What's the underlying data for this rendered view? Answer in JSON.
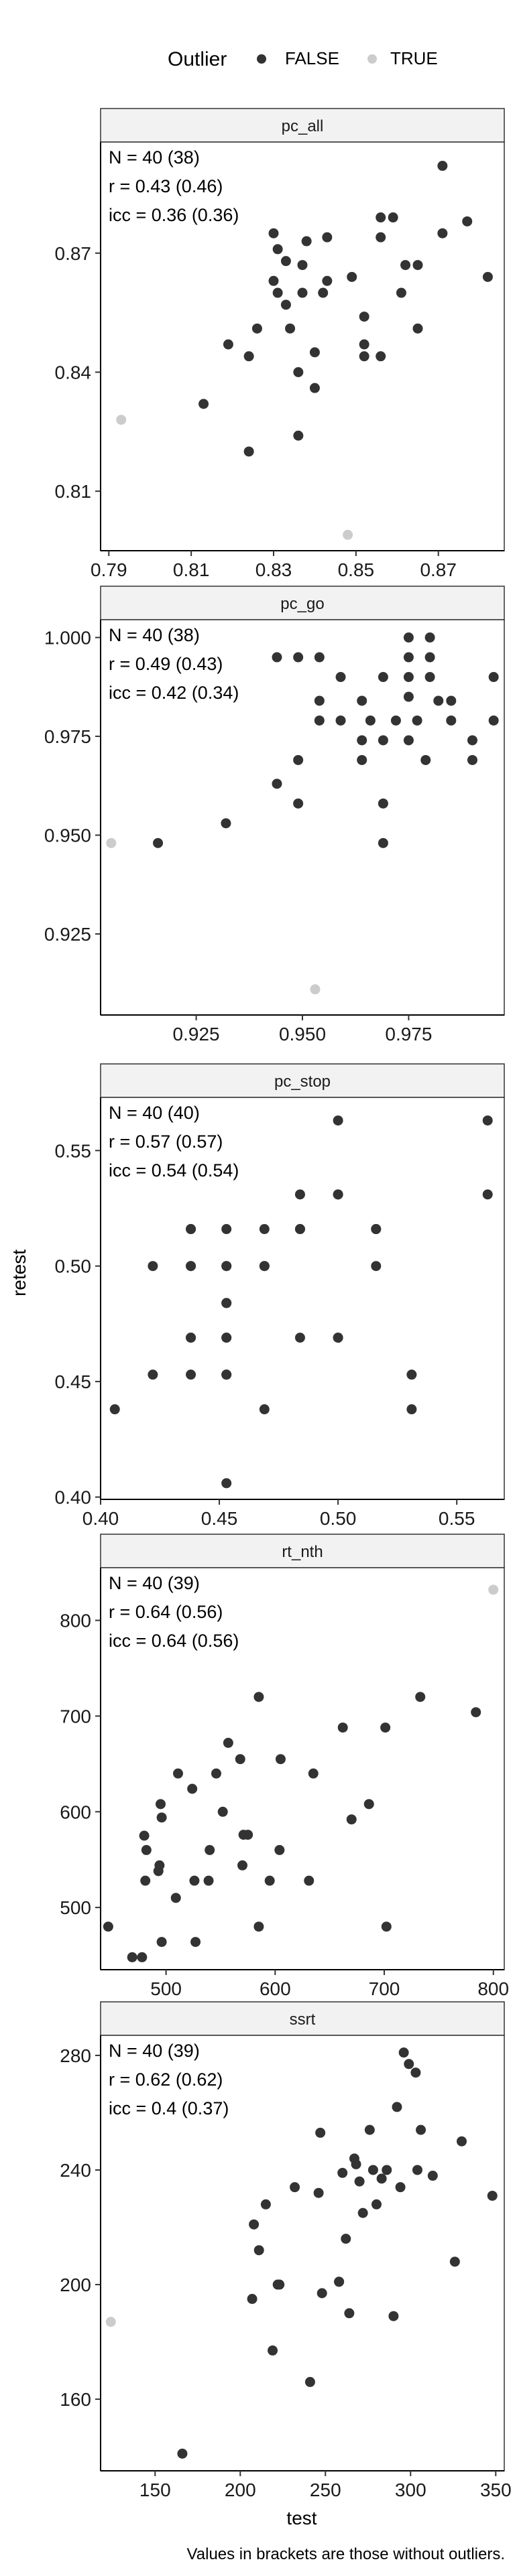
{
  "legend": {
    "title": "Outlier",
    "items": [
      {
        "label": "FALSE",
        "color": "#333333"
      },
      {
        "label": "TRUE",
        "color": "#cccccc"
      }
    ]
  },
  "y_axis_title": "retest",
  "x_axis_title": "test",
  "caption": "Values in brackets are those without outliers.",
  "chart_data": [
    {
      "type": "scatter",
      "title": "pc_all",
      "stats": [
        "N = 40 (38)",
        "r = 0.43 (0.46)",
        "icc = 0.36 (0.36)"
      ],
      "xlim": [
        0.788,
        0.886
      ],
      "ylim": [
        0.795,
        0.898
      ],
      "xticks": [
        0.79,
        0.81,
        0.83,
        0.85,
        0.87
      ],
      "yticks": [
        0.81,
        0.84,
        0.87
      ],
      "xdec": 2,
      "ydec": 2,
      "points": [
        [
          0.882,
          0.864
        ],
        [
          0.877,
          0.878
        ],
        [
          0.871,
          0.875
        ],
        [
          0.871,
          0.892
        ],
        [
          0.865,
          0.851
        ],
        [
          0.865,
          0.867
        ],
        [
          0.862,
          0.867
        ],
        [
          0.861,
          0.86
        ],
        [
          0.859,
          0.879
        ],
        [
          0.856,
          0.879
        ],
        [
          0.856,
          0.874
        ],
        [
          0.856,
          0.844
        ],
        [
          0.852,
          0.844
        ],
        [
          0.852,
          0.847
        ],
        [
          0.852,
          0.854
        ],
        [
          0.849,
          0.864
        ],
        [
          0.843,
          0.874
        ],
        [
          0.843,
          0.863
        ],
        [
          0.842,
          0.86
        ],
        [
          0.84,
          0.836
        ],
        [
          0.84,
          0.845
        ],
        [
          0.837,
          0.86
        ],
        [
          0.837,
          0.867
        ],
        [
          0.836,
          0.824
        ],
        [
          0.836,
          0.84
        ],
        [
          0.834,
          0.851
        ],
        [
          0.833,
          0.868
        ],
        [
          0.833,
          0.857
        ],
        [
          0.831,
          0.86
        ],
        [
          0.831,
          0.871
        ],
        [
          0.83,
          0.875
        ],
        [
          0.826,
          0.851
        ],
        [
          0.824,
          0.82
        ],
        [
          0.824,
          0.844
        ],
        [
          0.819,
          0.847
        ],
        [
          0.813,
          0.832
        ],
        [
          0.83,
          0.863
        ],
        [
          0.838,
          0.873
        ]
      ],
      "outliers": [
        [
          0.793,
          0.828
        ],
        [
          0.848,
          0.799
        ]
      ]
    },
    {
      "type": "scatter",
      "title": "pc_go",
      "stats": [
        "N = 40 (38)",
        "r = 0.49 (0.43)",
        "icc = 0.42 (0.34)"
      ],
      "xlim": [
        0.9025,
        0.9975
      ],
      "ylim": [
        0.9045,
        1.0045
      ],
      "xticks": [
        0.925,
        0.95,
        0.975
      ],
      "yticks": [
        0.925,
        0.95,
        0.975,
        1.0
      ],
      "xdec": 3,
      "ydec": 3,
      "points": [
        [
          0.995,
          0.99
        ],
        [
          0.995,
          0.979
        ],
        [
          0.99,
          0.974
        ],
        [
          0.99,
          0.969
        ],
        [
          0.985,
          0.979
        ],
        [
          0.985,
          0.984
        ],
        [
          0.982,
          0.984
        ],
        [
          0.98,
          1.0
        ],
        [
          0.98,
          0.99
        ],
        [
          0.979,
          0.969
        ],
        [
          0.977,
          0.979
        ],
        [
          0.975,
          0.974
        ],
        [
          0.975,
          0.985
        ],
        [
          0.975,
          0.99
        ],
        [
          0.975,
          0.995
        ],
        [
          0.975,
          1.0
        ],
        [
          0.972,
          0.979
        ],
        [
          0.969,
          0.974
        ],
        [
          0.969,
          0.958
        ],
        [
          0.969,
          0.948
        ],
        [
          0.966,
          0.979
        ],
        [
          0.964,
          0.984
        ],
        [
          0.964,
          0.969
        ],
        [
          0.959,
          0.99
        ],
        [
          0.959,
          0.979
        ],
        [
          0.954,
          0.984
        ],
        [
          0.954,
          0.995
        ],
        [
          0.949,
          0.995
        ],
        [
          0.949,
          0.969
        ],
        [
          0.949,
          0.958
        ],
        [
          0.944,
          0.963
        ],
        [
          0.932,
          0.953
        ],
        [
          0.916,
          0.948
        ],
        [
          0.964,
          0.974
        ],
        [
          0.954,
          0.979
        ],
        [
          0.944,
          0.995
        ],
        [
          0.969,
          0.99
        ],
        [
          0.98,
          0.995
        ]
      ],
      "outliers": [
        [
          0.905,
          0.948
        ],
        [
          0.953,
          0.911
        ]
      ]
    },
    {
      "type": "scatter",
      "title": "pc_stop",
      "stats": [
        "N = 40 (40)",
        "r = 0.57 (0.57)",
        "icc = 0.54 (0.54)"
      ],
      "xlim": [
        0.4,
        0.57
      ],
      "ylim": [
        0.399,
        0.573
      ],
      "xticks": [
        0.4,
        0.45,
        0.5,
        0.55
      ],
      "yticks": [
        0.4,
        0.45,
        0.5,
        0.55
      ],
      "xdec": 2,
      "ydec": 2,
      "points": [
        [
          0.406,
          0.438
        ],
        [
          0.422,
          0.453
        ],
        [
          0.422,
          0.5
        ],
        [
          0.438,
          0.453
        ],
        [
          0.438,
          0.469
        ],
        [
          0.438,
          0.5
        ],
        [
          0.438,
          0.516
        ],
        [
          0.453,
          0.406
        ],
        [
          0.453,
          0.453
        ],
        [
          0.453,
          0.469
        ],
        [
          0.453,
          0.484
        ],
        [
          0.453,
          0.5
        ],
        [
          0.453,
          0.516
        ],
        [
          0.469,
          0.438
        ],
        [
          0.469,
          0.5
        ],
        [
          0.469,
          0.516
        ],
        [
          0.484,
          0.469
        ],
        [
          0.484,
          0.516
        ],
        [
          0.484,
          0.531
        ],
        [
          0.5,
          0.469
        ],
        [
          0.5,
          0.531
        ],
        [
          0.5,
          0.563
        ],
        [
          0.516,
          0.5
        ],
        [
          0.516,
          0.516
        ],
        [
          0.531,
          0.438
        ],
        [
          0.531,
          0.453
        ],
        [
          0.563,
          0.531
        ],
        [
          0.563,
          0.563
        ],
        [
          0.453,
          0.469
        ],
        [
          0.453,
          0.5
        ],
        [
          0.438,
          0.469
        ],
        [
          0.438,
          0.5
        ],
        [
          0.484,
          0.516
        ],
        [
          0.5,
          0.531
        ],
        [
          0.516,
          0.516
        ],
        [
          0.453,
          0.453
        ],
        [
          0.469,
          0.5
        ],
        [
          0.453,
          0.484
        ],
        [
          0.438,
          0.516
        ],
        [
          0.5,
          0.469
        ]
      ],
      "outliers": []
    },
    {
      "type": "scatter",
      "title": "rt_nth",
      "stats": [
        "N = 40 (39)",
        "r = 0.64 (0.56)",
        "icc = 0.64 (0.56)"
      ],
      "xlim": [
        440,
        810
      ],
      "ylim": [
        435,
        855
      ],
      "xticks": [
        500,
        600,
        700,
        800
      ],
      "yticks": [
        500,
        600,
        700,
        800
      ],
      "xdec": 0,
      "ydec": 0,
      "points": [
        [
          447,
          480
        ],
        [
          469,
          448
        ],
        [
          478,
          448
        ],
        [
          480,
          575
        ],
        [
          482,
          560
        ],
        [
          481,
          528
        ],
        [
          493,
          538
        ],
        [
          494,
          544
        ],
        [
          496,
          594
        ],
        [
          495,
          608
        ],
        [
          496,
          464
        ],
        [
          509,
          510
        ],
        [
          511,
          640
        ],
        [
          526,
          528
        ],
        [
          527,
          464
        ],
        [
          524,
          624
        ],
        [
          539,
          528
        ],
        [
          540,
          560
        ],
        [
          546,
          640
        ],
        [
          557,
          672
        ],
        [
          568,
          655
        ],
        [
          570,
          544
        ],
        [
          571,
          576
        ],
        [
          585,
          480
        ],
        [
          585,
          720
        ],
        [
          595,
          528
        ],
        [
          604,
          560
        ],
        [
          605,
          655
        ],
        [
          631,
          528
        ],
        [
          635,
          640
        ],
        [
          662,
          688
        ],
        [
          670,
          592
        ],
        [
          686,
          608
        ],
        [
          701,
          688
        ],
        [
          702,
          480
        ],
        [
          733,
          720
        ],
        [
          784,
          704
        ],
        [
          552,
          600
        ],
        [
          575,
          576
        ]
      ],
      "outliers": [
        [
          800,
          832
        ]
      ]
    },
    {
      "type": "scatter",
      "title": "ssrt",
      "stats": [
        "N = 40 (39)",
        "r = 0.62 (0.62)",
        "icc = 0.4 (0.37)"
      ],
      "xlim": [
        118,
        355
      ],
      "ylim": [
        135,
        287
      ],
      "xticks": [
        150,
        200,
        250,
        300,
        350
      ],
      "yticks": [
        160,
        200,
        240,
        280
      ],
      "xdec": 0,
      "ydec": 0,
      "points": [
        [
          166,
          141
        ],
        [
          207,
          195
        ],
        [
          208,
          221
        ],
        [
          211,
          212
        ],
        [
          215,
          228
        ],
        [
          219,
          177
        ],
        [
          223,
          200
        ],
        [
          232,
          234
        ],
        [
          241,
          166
        ],
        [
          246,
          232
        ],
        [
          247,
          253
        ],
        [
          248,
          197
        ],
        [
          258,
          201
        ],
        [
          260,
          239
        ],
        [
          262,
          216
        ],
        [
          264,
          190
        ],
        [
          267,
          244
        ],
        [
          268,
          242
        ],
        [
          272,
          225
        ],
        [
          276,
          254
        ],
        [
          278,
          240
        ],
        [
          280,
          228
        ],
        [
          283,
          237
        ],
        [
          286,
          240
        ],
        [
          290,
          189
        ],
        [
          292,
          262
        ],
        [
          294,
          234
        ],
        [
          296,
          281
        ],
        [
          299,
          277
        ],
        [
          303,
          274
        ],
        [
          304,
          240
        ],
        [
          306,
          254
        ],
        [
          313,
          238
        ],
        [
          326,
          208
        ],
        [
          330,
          250
        ],
        [
          348,
          231
        ],
        [
          222,
          200
        ],
        [
          258,
          201
        ],
        [
          270,
          236
        ]
      ],
      "outliers": [
        [
          124,
          187
        ]
      ]
    }
  ]
}
